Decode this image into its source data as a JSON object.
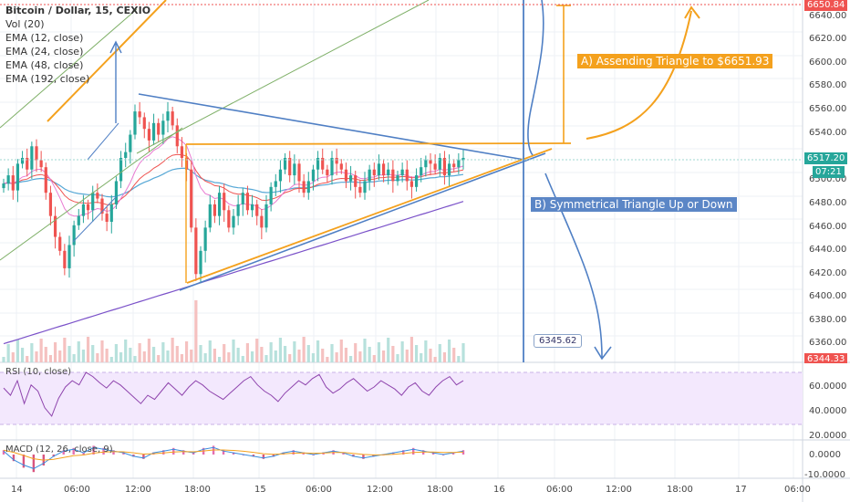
{
  "symbol": {
    "title": "Bitcoin / Dollar, 15, CEXIO"
  },
  "indicators": [
    "Vol (20)",
    "EMA (12, close)",
    "EMA (24, close)",
    "EMA (48, close)",
    "EMA (192, close)"
  ],
  "annotations": {
    "a": "A) Assending Triangle to $6651.93",
    "b": "B) Symmetrical Triangle Up or Down",
    "ruler": "6345.62"
  },
  "price_axis": {
    "ticks": [
      "6640.00",
      "6620.00",
      "6600.00",
      "6580.00",
      "6560.00",
      "6540.00",
      "6500.00",
      "6480.00",
      "6460.00",
      "6440.00",
      "6420.00",
      "6400.00",
      "6380.00",
      "6360.00"
    ],
    "top_tag": "6650.84",
    "current_price": "6517.20",
    "countdown": "07:21",
    "bottom_tag": "6344.33"
  },
  "rsi": {
    "label": "RSI (10, close)",
    "ticks": [
      "60.0000",
      "40.0000",
      "20.0000"
    ]
  },
  "macd": {
    "label": "MACD (12, 26, close, 9)",
    "ticks": [
      "0.0000",
      "-10.0000"
    ]
  },
  "time_axis": [
    "14",
    "06:00",
    "12:00",
    "18:00",
    "15",
    "06:00",
    "12:00",
    "18:00",
    "16",
    "06:00",
    "12:00",
    "18:00",
    "17",
    "06:00"
  ],
  "colors": {
    "up": "#26a69a",
    "down": "#ef5350",
    "orange": "#f4a11d",
    "blue": "#4f7fc4",
    "ema12": "#e97bd2",
    "ema24": "#ef5350",
    "ema48": "#57a8d6",
    "ema192": "#7b52c9"
  },
  "chart_data": {
    "type": "candlestick",
    "title": "Bitcoin / Dollar, 15, CEXIO",
    "ylim": [
      6344,
      6652
    ],
    "levels": {
      "target": 6651.93,
      "ruler": 6345.62,
      "current": 6517.2,
      "resistance": 6532
    },
    "closes": [
      6498,
      6505,
      6492,
      6515,
      6520,
      6510,
      6530,
      6518,
      6512,
      6490,
      6470,
      6452,
      6440,
      6425,
      6445,
      6462,
      6470,
      6480,
      6475,
      6490,
      6485,
      6472,
      6465,
      6480,
      6500,
      6520,
      6525,
      6540,
      6560,
      6555,
      6545,
      6535,
      6550,
      6540,
      6552,
      6560,
      6548,
      6530,
      6520,
      6510,
      6460,
      6420,
      6440,
      6460,
      6480,
      6470,
      6490,
      6475,
      6460,
      6470,
      6480,
      6490,
      6475,
      6480,
      6470,
      6460,
      6480,
      6495,
      6500,
      6510,
      6520,
      6505,
      6515,
      6500,
      6490,
      6500,
      6510,
      6520,
      6510,
      6505,
      6520,
      6515,
      6510,
      6500,
      6505,
      6495,
      6490,
      6500,
      6510,
      6505,
      6515,
      6505,
      6510,
      6500,
      6505,
      6510,
      6500,
      6495,
      6505,
      6512,
      6518,
      6515,
      6510,
      6520,
      6505,
      6515,
      6512,
      6518,
      6520
    ],
    "rsi": [
      55,
      48,
      62,
      40,
      58,
      52,
      36,
      28,
      45,
      56,
      62,
      58,
      70,
      66,
      60,
      55,
      62,
      58,
      52,
      46,
      40,
      48,
      44,
      52,
      60,
      54,
      48,
      56,
      62,
      58,
      52,
      48,
      44,
      50,
      56,
      62,
      66,
      58,
      52,
      48,
      42,
      50,
      56,
      62,
      58,
      64,
      68,
      56,
      50,
      54,
      60,
      64,
      58,
      52,
      56,
      62,
      58,
      54,
      48,
      56,
      60,
      52,
      48,
      56,
      62,
      66,
      58,
      62
    ],
    "macd": [
      2,
      -3,
      -6,
      -8,
      -5,
      -1,
      2,
      3,
      1,
      4,
      3,
      2,
      1,
      -1,
      -2,
      1,
      2,
      3,
      2,
      1,
      3,
      4,
      2,
      1,
      0,
      -1,
      -2,
      -1,
      1,
      2,
      1,
      0,
      1,
      2,
      1,
      -1,
      -2,
      -1,
      0,
      1,
      2,
      3,
      2,
      1,
      0,
      1,
      2
    ]
  }
}
